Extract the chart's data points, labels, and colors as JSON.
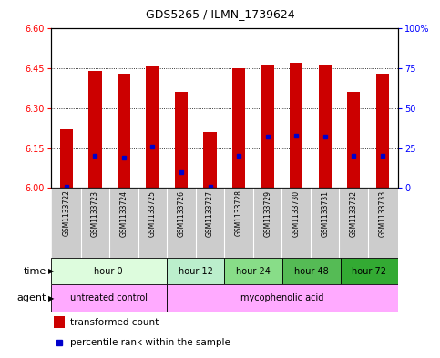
{
  "title": "GDS5265 / ILMN_1739624",
  "samples": [
    "GSM1133722",
    "GSM1133723",
    "GSM1133724",
    "GSM1133725",
    "GSM1133726",
    "GSM1133727",
    "GSM1133728",
    "GSM1133729",
    "GSM1133730",
    "GSM1133731",
    "GSM1133732",
    "GSM1133733"
  ],
  "bar_tops": [
    6.22,
    6.44,
    6.43,
    6.46,
    6.36,
    6.21,
    6.45,
    6.465,
    6.47,
    6.465,
    6.36,
    6.43
  ],
  "bar_bottom": 6.0,
  "percentile_values": [
    0.5,
    20,
    19,
    26,
    10,
    0.5,
    20,
    32,
    33,
    32,
    20,
    20
  ],
  "ylim_left": [
    6.0,
    6.6
  ],
  "ylim_right": [
    0,
    100
  ],
  "yticks_left": [
    6.0,
    6.15,
    6.3,
    6.45,
    6.6
  ],
  "yticks_right": [
    0,
    25,
    50,
    75,
    100
  ],
  "bar_color": "#cc0000",
  "marker_color": "#0000cc",
  "time_groups": [
    {
      "label": "hour 0",
      "start": 0,
      "end": 4,
      "color": "#ddfcdd"
    },
    {
      "label": "hour 12",
      "start": 4,
      "end": 6,
      "color": "#bbeecc"
    },
    {
      "label": "hour 24",
      "start": 6,
      "end": 8,
      "color": "#88dd88"
    },
    {
      "label": "hour 48",
      "start": 8,
      "end": 10,
      "color": "#55bb55"
    },
    {
      "label": "hour 72",
      "start": 10,
      "end": 12,
      "color": "#33aa33"
    }
  ],
  "agent_groups": [
    {
      "label": "untreated control",
      "start": 0,
      "end": 4,
      "color": "#ffaaff"
    },
    {
      "label": "mycophenolic acid",
      "start": 4,
      "end": 12,
      "color": "#ffaaff"
    }
  ],
  "legend_bar_label": "transformed count",
  "legend_marker_label": "percentile rank within the sample"
}
